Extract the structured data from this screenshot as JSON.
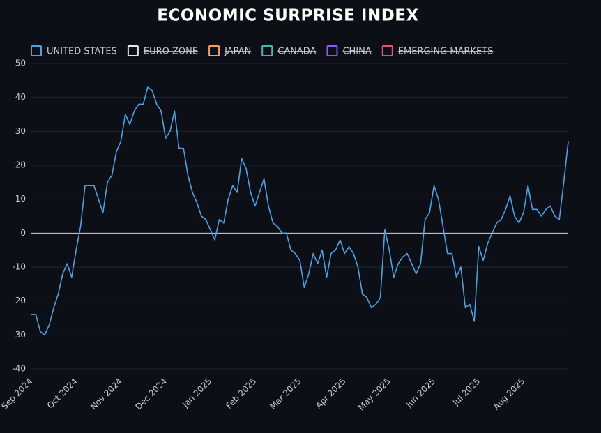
{
  "chart_data": {
    "type": "line",
    "title": "ECONOMIC SURPRISE INDEX",
    "categories": [
      "Sep 2024",
      null,
      null,
      null,
      null,
      null,
      null,
      null,
      null,
      null,
      "Oct 2024",
      null,
      null,
      null,
      null,
      null,
      null,
      null,
      null,
      null,
      "Nov 2024",
      null,
      null,
      null,
      null,
      null,
      null,
      null,
      null,
      null,
      "Dec 2024",
      null,
      null,
      null,
      null,
      null,
      null,
      null,
      null,
      null,
      "Jan 2025",
      null,
      null,
      null,
      null,
      null,
      null,
      null,
      null,
      null,
      "Feb 2025",
      null,
      null,
      null,
      null,
      null,
      null,
      null,
      null,
      null,
      "Mar 2025",
      null,
      null,
      null,
      null,
      null,
      null,
      null,
      null,
      null,
      "Apr 2025",
      null,
      null,
      null,
      null,
      null,
      null,
      null,
      null,
      null,
      "May 2025",
      null,
      null,
      null,
      null,
      null,
      null,
      null,
      null,
      null,
      "Jun 2025",
      null,
      null,
      null,
      null,
      null,
      null,
      null,
      null,
      null,
      "Jul 2025",
      null,
      null,
      null,
      null,
      null,
      null,
      null,
      null,
      null,
      "Aug 2025",
      null,
      null,
      null,
      null,
      null,
      null,
      null,
      null,
      null,
      null
    ],
    "series": [
      {
        "name": "UNITED STATES",
        "color": "#4aa3e6",
        "hidden": false,
        "values": [
          -24,
          -24,
          -29,
          -30,
          -27,
          -22,
          -18,
          -12,
          -9,
          -13,
          -5,
          2,
          14,
          14,
          14,
          10,
          6,
          15,
          17,
          24,
          27,
          35,
          32,
          36,
          38,
          38,
          43,
          42,
          38,
          36,
          28,
          30,
          36,
          25,
          25,
          17,
          12,
          9,
          5,
          4,
          1,
          -2,
          4,
          3,
          10,
          14,
          12,
          22,
          19,
          12,
          8,
          12,
          16,
          8,
          3,
          2,
          0,
          0,
          -5,
          -6,
          -8,
          -16,
          -12,
          -6,
          -9,
          -5,
          -13,
          -6,
          -5,
          -2,
          -6,
          -4,
          -6,
          -10,
          -18,
          -19,
          -22,
          -21,
          -19,
          1,
          -5,
          -13,
          -9,
          -7,
          -6,
          -9,
          -12,
          -9,
          4,
          6,
          14,
          10,
          2,
          -6,
          -6,
          -13,
          -10,
          -22,
          -21,
          -26,
          -4,
          -8,
          -3,
          0,
          3,
          4,
          7,
          11,
          5,
          3,
          6,
          14,
          7,
          7,
          5,
          7,
          8,
          5,
          4,
          15,
          27
        ]
      },
      {
        "name": "EURO ZONE",
        "color": "#e6e6e6",
        "hidden": true
      },
      {
        "name": "JAPAN",
        "color": "#f2a060",
        "hidden": true
      },
      {
        "name": "CANADA",
        "color": "#4bb5ad",
        "hidden": true
      },
      {
        "name": "CHINA",
        "color": "#8b5cf0",
        "hidden": true
      },
      {
        "name": "EMERGING MARKETS",
        "color": "#e0566a",
        "hidden": true
      }
    ],
    "ylim": [
      -40,
      50
    ],
    "yticks": [
      -40,
      -30,
      -20,
      -10,
      0,
      10,
      20,
      30,
      40,
      50
    ],
    "grid": true,
    "legend": "top-left"
  }
}
